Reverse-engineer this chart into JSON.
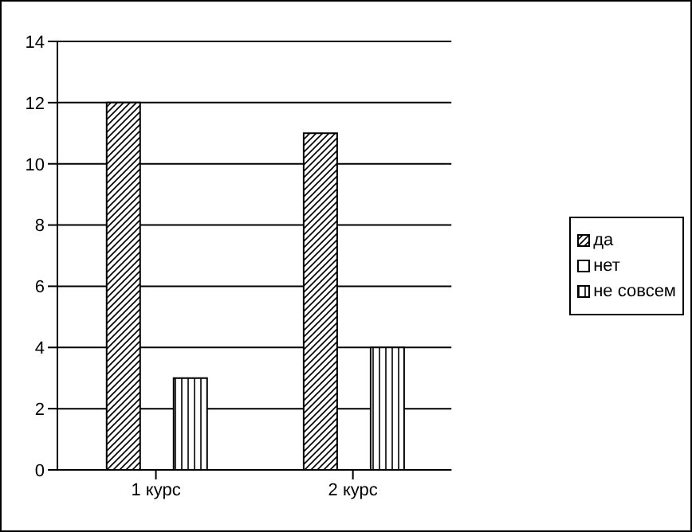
{
  "chart_data": {
    "type": "bar",
    "categories": [
      "1 курс",
      "2 курс"
    ],
    "series": [
      {
        "name": "да",
        "color": "#000000",
        "values": [
          12,
          11
        ]
      },
      {
        "name": "нет",
        "color": "#000000",
        "values": [
          0,
          0
        ]
      },
      {
        "name": "не совсем",
        "color": "#000000",
        "values": [
          3,
          4
        ]
      }
    ],
    "ylim": [
      0,
      14
    ],
    "yticks": [
      0,
      2,
      4,
      6,
      8,
      10,
      12,
      14
    ],
    "grid": "y",
    "legend": "right"
  }
}
